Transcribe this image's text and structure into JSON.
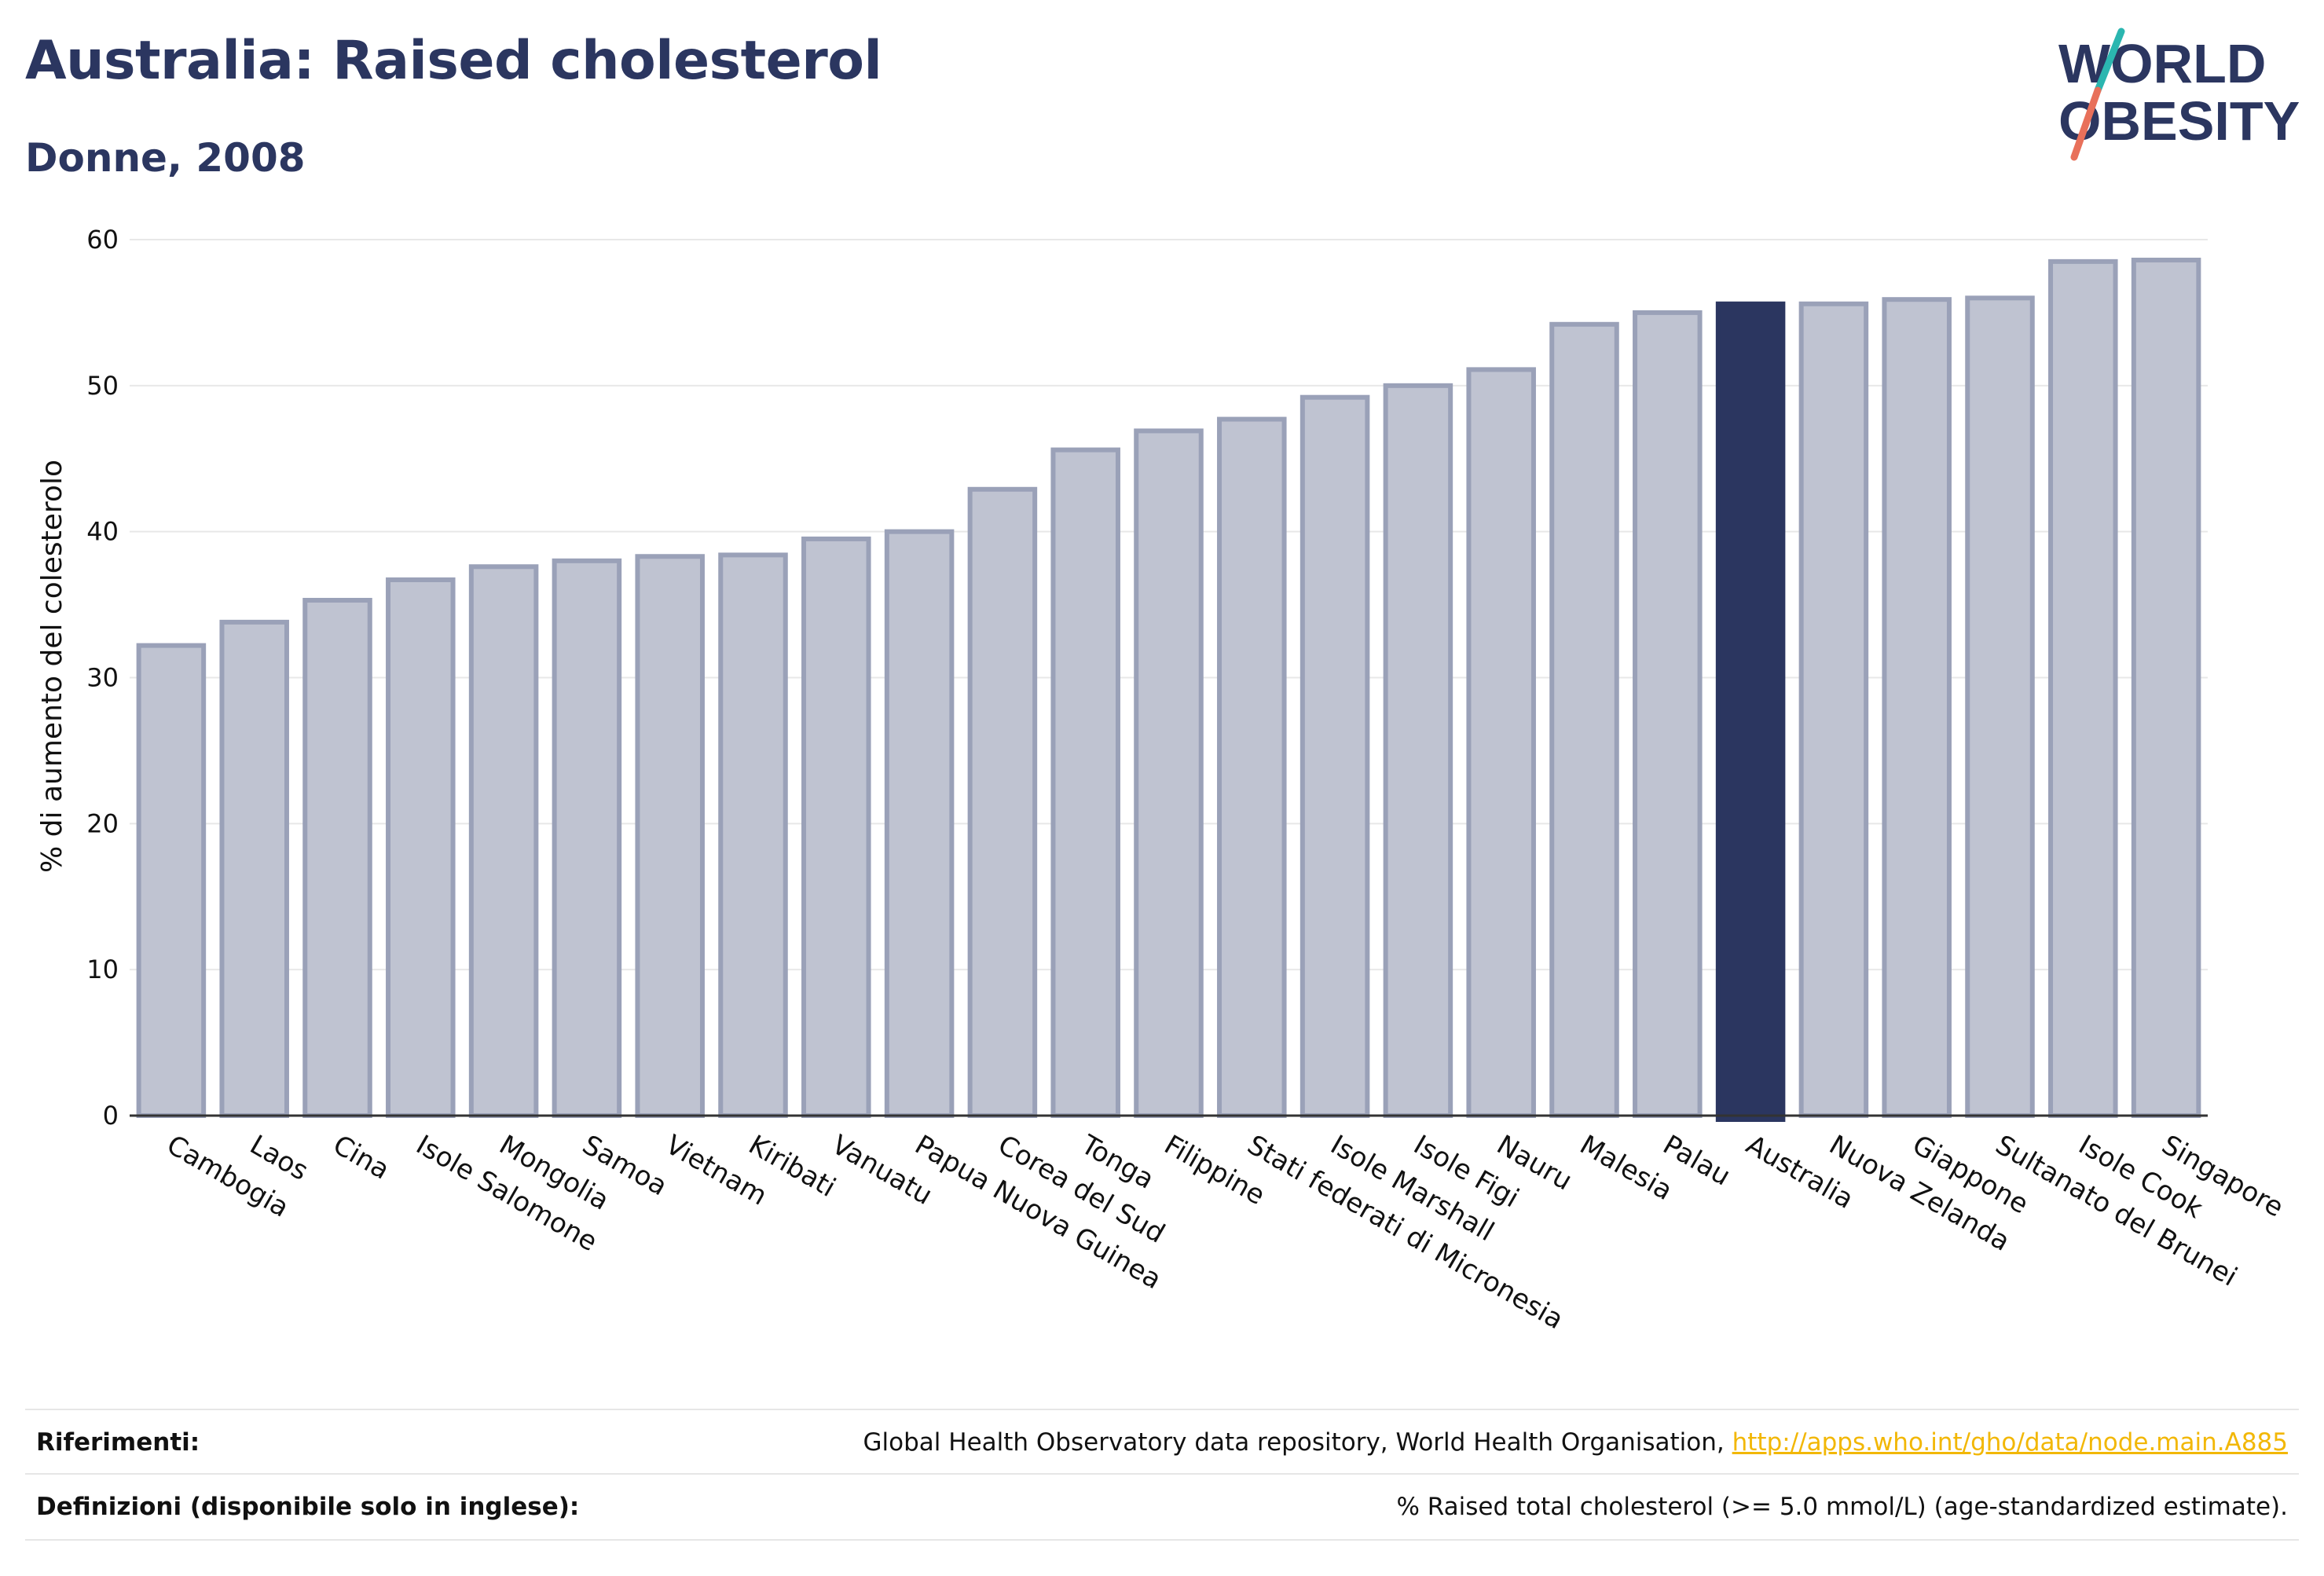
{
  "header": {
    "title": "Australia: Raised cholesterol",
    "subtitle": "Donne, 2008",
    "logo_line1": "WORLD",
    "logo_line2": "OBESITY"
  },
  "colors": {
    "bar": "#bfc3d1",
    "bar_stroke": "#9aa1b8",
    "highlight": "#2b3660",
    "title": "#2b3660",
    "link": "#f2b705",
    "logo_teal": "#2bb6b0",
    "logo_coral": "#e8705a"
  },
  "chart_data": {
    "type": "bar",
    "ylabel": "% di aumento del colesterolo",
    "ylim": [
      0,
      60
    ],
    "yticks": [
      0,
      10,
      20,
      30,
      40,
      50,
      60
    ],
    "highlight_category": "Australia",
    "categories": [
      "Cambogia",
      "Laos",
      "Cina",
      "Isole Salomone",
      "Mongolia",
      "Samoa",
      "Vietnam",
      "Kiribati",
      "Vanuatu",
      "Papua Nuova Guinea",
      "Corea del Sud",
      "Tonga",
      "Filippine",
      "Stati federati di Micronesia",
      "Isole Marshall",
      "Isole Figi",
      "Nauru",
      "Malesia",
      "Palau",
      "Australia",
      "Nuova Zelanda",
      "Giappone",
      "Sultanato del Brunei",
      "Isole Cook",
      "Singapore"
    ],
    "values": [
      32.2,
      33.8,
      35.3,
      36.7,
      37.6,
      38.0,
      38.3,
      38.4,
      39.5,
      40.0,
      42.9,
      45.6,
      46.9,
      47.7,
      49.2,
      50.0,
      51.1,
      54.2,
      55.0,
      55.6,
      55.6,
      55.9,
      56.0,
      58.5,
      58.6
    ]
  },
  "footer": {
    "ref_label": "Riferimenti:",
    "ref_text": "Global Health Observatory data repository, World Health Organisation, ",
    "ref_link": "http://apps.who.int/gho/data/node.main.A885",
    "def_label": "Definizioni (disponibile solo in inglese):",
    "def_text": "% Raised total cholesterol (>= 5.0 mmol/L) (age-standardized estimate)."
  }
}
